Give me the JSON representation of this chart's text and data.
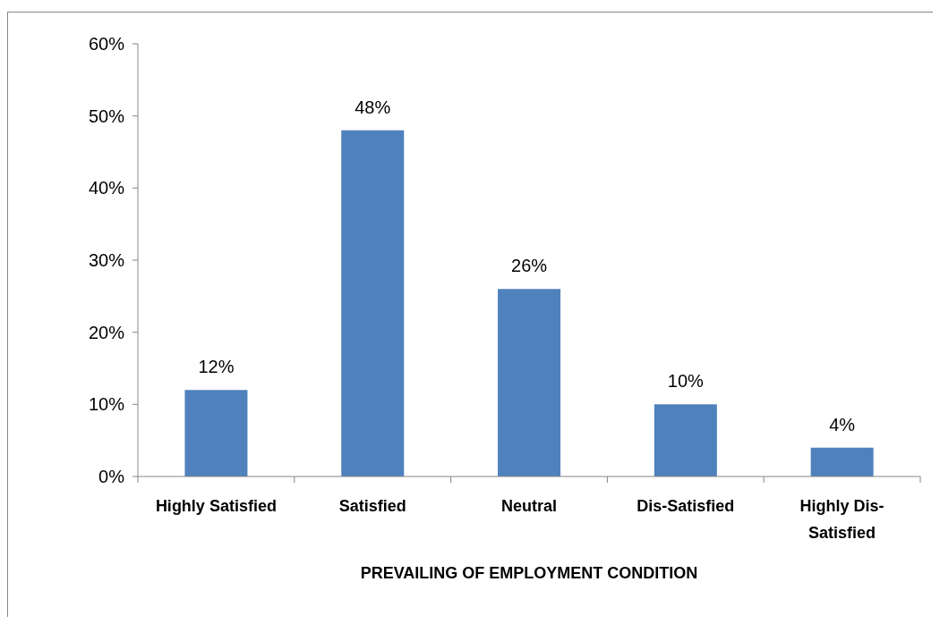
{
  "chart_data": {
    "type": "bar",
    "xlabel": "PREVAILING OF EMPLOYMENT CONDITION",
    "categories": [
      "Highly Satisfied",
      "Satisfied",
      "Neutral",
      "Dis-Satisfied",
      "Highly Dis-Satisfied"
    ],
    "values": [
      12,
      48,
      26,
      10,
      4
    ],
    "color": "#4f81bd",
    "value_labels": [
      "12%",
      "48%",
      "26%",
      "10%",
      "4%"
    ],
    "ylim": [
      0,
      60
    ],
    "yticks": [
      {
        "value": 0,
        "label": "0%"
      },
      {
        "value": 10,
        "label": "10%"
      },
      {
        "value": 20,
        "label": "20%"
      },
      {
        "value": 30,
        "label": "30%"
      },
      {
        "value": 40,
        "label": "40%"
      },
      {
        "value": 50,
        "label": "50%"
      },
      {
        "value": 60,
        "label": "60%"
      }
    ]
  }
}
